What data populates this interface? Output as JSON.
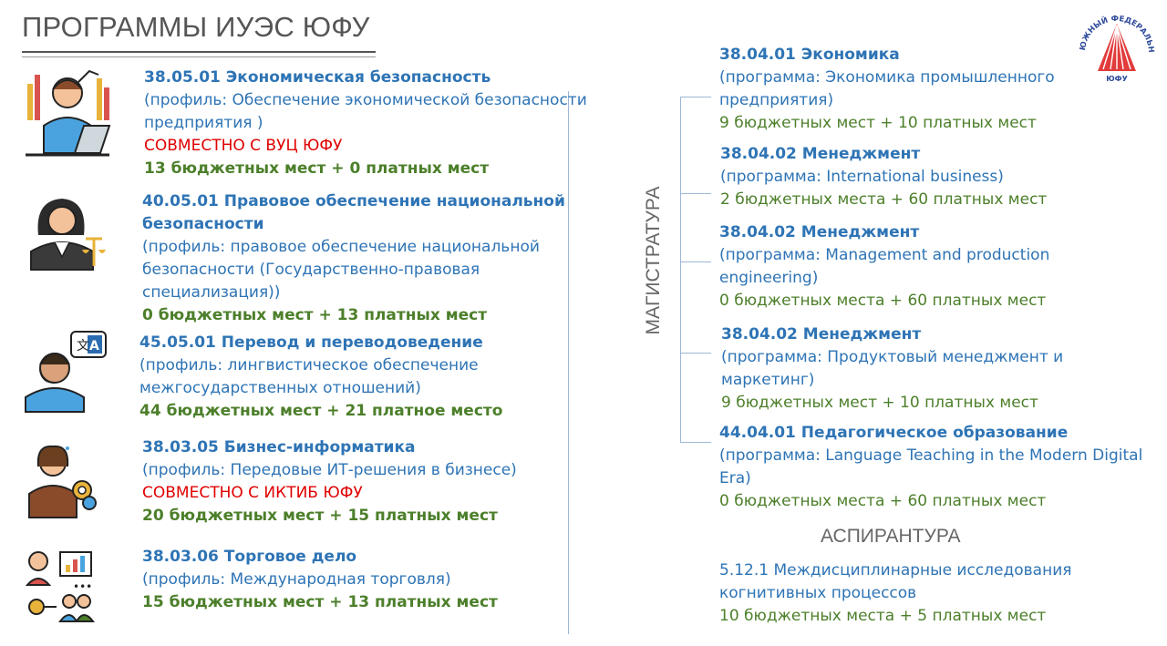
{
  "title": "ПРОГРАММЫ ИУЭС ЮФУ",
  "left": [
    {
      "name": "38.05.01 Экономическая безопасность",
      "desc": [
        "(профиль: Обеспечение экономической безопасности",
        "предприятия )"
      ],
      "note": "СОВМЕСТНО С ВУЦ ЮФУ",
      "places": "13 бюджетных мест + 0 платных мест"
    },
    {
      "name": [
        "40.05.01 Правовое обеспечение национальной",
        "безопасности"
      ],
      "desc": [
        "(профиль: правовое обеспечение национальной",
        "безопасности (Государственно-правовая",
        "специализация))"
      ],
      "places": "0 бюджетных мест + 13 платных мест"
    },
    {
      "name": "45.05.01 Перевод и переводоведение",
      "desc": [
        "(профиль: лингвистическое обеспечение",
        "межгосударственных отношений)"
      ],
      "places": "44 бюджетных мест + 21 платное место"
    },
    {
      "name": "38.03.05 Бизнес-информатика",
      "desc": [
        "(профиль: Передовые ИТ-решения в бизнесе)"
      ],
      "note": "СОВМЕСТНО С ИКТИБ ЮФУ",
      "places": "20 бюджетных мест + 15 платных мест"
    },
    {
      "name": "38.03.06 Торговое дело",
      "desc": [
        "(профиль: Международная торговля)"
      ],
      "places": "15 бюджетных мест + 13 платных мест"
    }
  ],
  "side_label": "МАГИСТРАТУРА",
  "right": [
    {
      "name": "38.04.01 Экономика",
      "desc": [
        "(программа: Экономика промышленного",
        "предприятия)"
      ],
      "places": "9 бюджетных мест + 10 платных мест"
    },
    {
      "name": "38.04.02 Менеджмент",
      "desc": [
        "(программа: International business)"
      ],
      "places": "2 бюджетных места + 60 платных мест"
    },
    {
      "name": "38.04.02 Менеджмент",
      "desc": [
        "(программа: Management and production",
        "engineering)"
      ],
      "places": "0 бюджетных места + 60 платных мест"
    },
    {
      "name": "38.04.02 Менеджмент",
      "desc": [
        "(программа: Продуктовый менеджмент и",
        "маркетинг)"
      ],
      "places": "9 бюджетных мест + 10 платных мест"
    },
    {
      "name": "44.04.01 Педагогическое образование",
      "desc": [
        "(программа: Language Teaching in the Modern Digital",
        "Era)"
      ],
      "places": "0 бюджетных места + 60 платных мест"
    }
  ],
  "aspirantura": {
    "heading": "АСПИРАНТУРА",
    "desc": [
      "5.12.1 Междисциплинарные исследования",
      "когнитивных процессов"
    ],
    "places": "10 бюджетных места + 5 платных мест"
  },
  "logo": {
    "top_text": "ЮЖНЫЙ ФЕДЕРАЛЬНЫЙ УНИВЕРСИТЕТ",
    "center_text": "ЮФУ"
  },
  "icons": [
    "economist-icon",
    "lawyer-icon",
    "translator-icon",
    "it-specialist-icon",
    "trade-icon"
  ],
  "colors": {
    "blue": "#2e74b5",
    "red": "#e00000",
    "green": "#4c7f2a",
    "gray": "#555555"
  }
}
